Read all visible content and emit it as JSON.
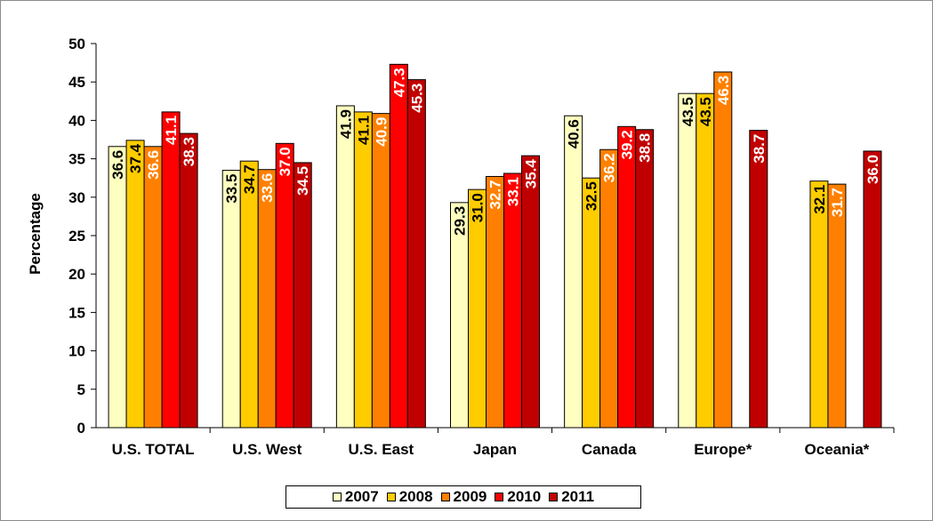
{
  "chart_data": {
    "type": "bar",
    "title": "",
    "xlabel": "",
    "ylabel": "Percentage",
    "ylim": [
      0,
      50
    ],
    "y_ticks": [
      "0",
      "5",
      "10",
      "15",
      "20",
      "25",
      "30",
      "35",
      "40",
      "45",
      "50"
    ],
    "categories": [
      "U.S. TOTAL",
      "U.S. West",
      "U.S. East",
      "Japan",
      "Canada",
      "Europe*",
      "Oceania*"
    ],
    "series": [
      {
        "name": "2007",
        "color": "#ffffc0",
        "label_color": "#000000",
        "values": [
          36.6,
          33.5,
          41.9,
          29.3,
          40.6,
          43.5,
          null
        ],
        "labels": [
          "36.6",
          "33.5",
          "41.9",
          "29.3",
          "40.6",
          "43.5",
          ""
        ]
      },
      {
        "name": "2008",
        "color": "#ffcc00",
        "label_color": "#000000",
        "values": [
          37.4,
          34.7,
          41.1,
          31.0,
          32.5,
          43.5,
          32.1
        ],
        "labels": [
          "37.4",
          "34.7",
          "41.1",
          "31.0",
          "32.5",
          "43.5",
          "32.1"
        ]
      },
      {
        "name": "2009",
        "color": "#ff8000",
        "label_color": "#ffffff",
        "values": [
          36.6,
          33.6,
          40.9,
          32.7,
          36.2,
          46.3,
          31.7
        ],
        "labels": [
          "36.6",
          "33.6",
          "40.9",
          "32.7",
          "36.2",
          "46.3",
          "31.7"
        ]
      },
      {
        "name": "2010",
        "color": "#ff0000",
        "label_color": "#ffffff",
        "values": [
          41.1,
          37.0,
          47.3,
          33.1,
          39.2,
          null,
          null
        ],
        "labels": [
          "41.1",
          "37.0",
          "47.3",
          "33.1",
          "39.2",
          "",
          ""
        ]
      },
      {
        "name": "2011",
        "color": "#c00000",
        "label_color": "#ffffff",
        "values": [
          38.3,
          34.5,
          45.3,
          35.4,
          38.8,
          38.7,
          36.0
        ],
        "labels": [
          "38.3",
          "34.5",
          "45.3",
          "35.4",
          "38.8",
          "38.7",
          "36.0"
        ]
      }
    ],
    "grid": false,
    "legend_position": "bottom"
  }
}
